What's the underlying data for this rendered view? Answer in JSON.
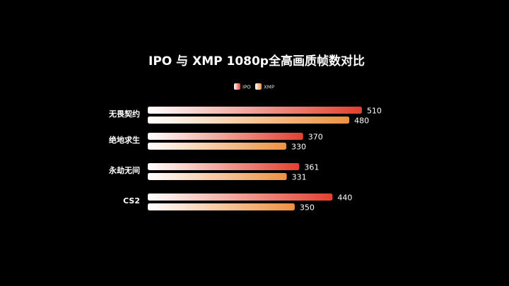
{
  "chart_data": {
    "type": "bar",
    "orientation": "horizontal",
    "title": "IPO 与 XMP 1080p全高画质帧数对比",
    "categories": [
      "无畏契约",
      "绝地求生",
      "永劫无间",
      "CS2"
    ],
    "series": [
      {
        "name": "IPO",
        "values": [
          510,
          370,
          361,
          440
        ]
      },
      {
        "name": "XMP",
        "values": [
          480,
          330,
          331,
          350
        ]
      }
    ],
    "xlim": [
      0,
      600
    ],
    "grid": false,
    "legend": "top-center",
    "colors": {
      "background": "#000000",
      "IPO_start": "#ffffff",
      "IPO_end": "#e2402d",
      "XMP_start": "#ffffff",
      "XMP_end": "#ee9140"
    }
  }
}
